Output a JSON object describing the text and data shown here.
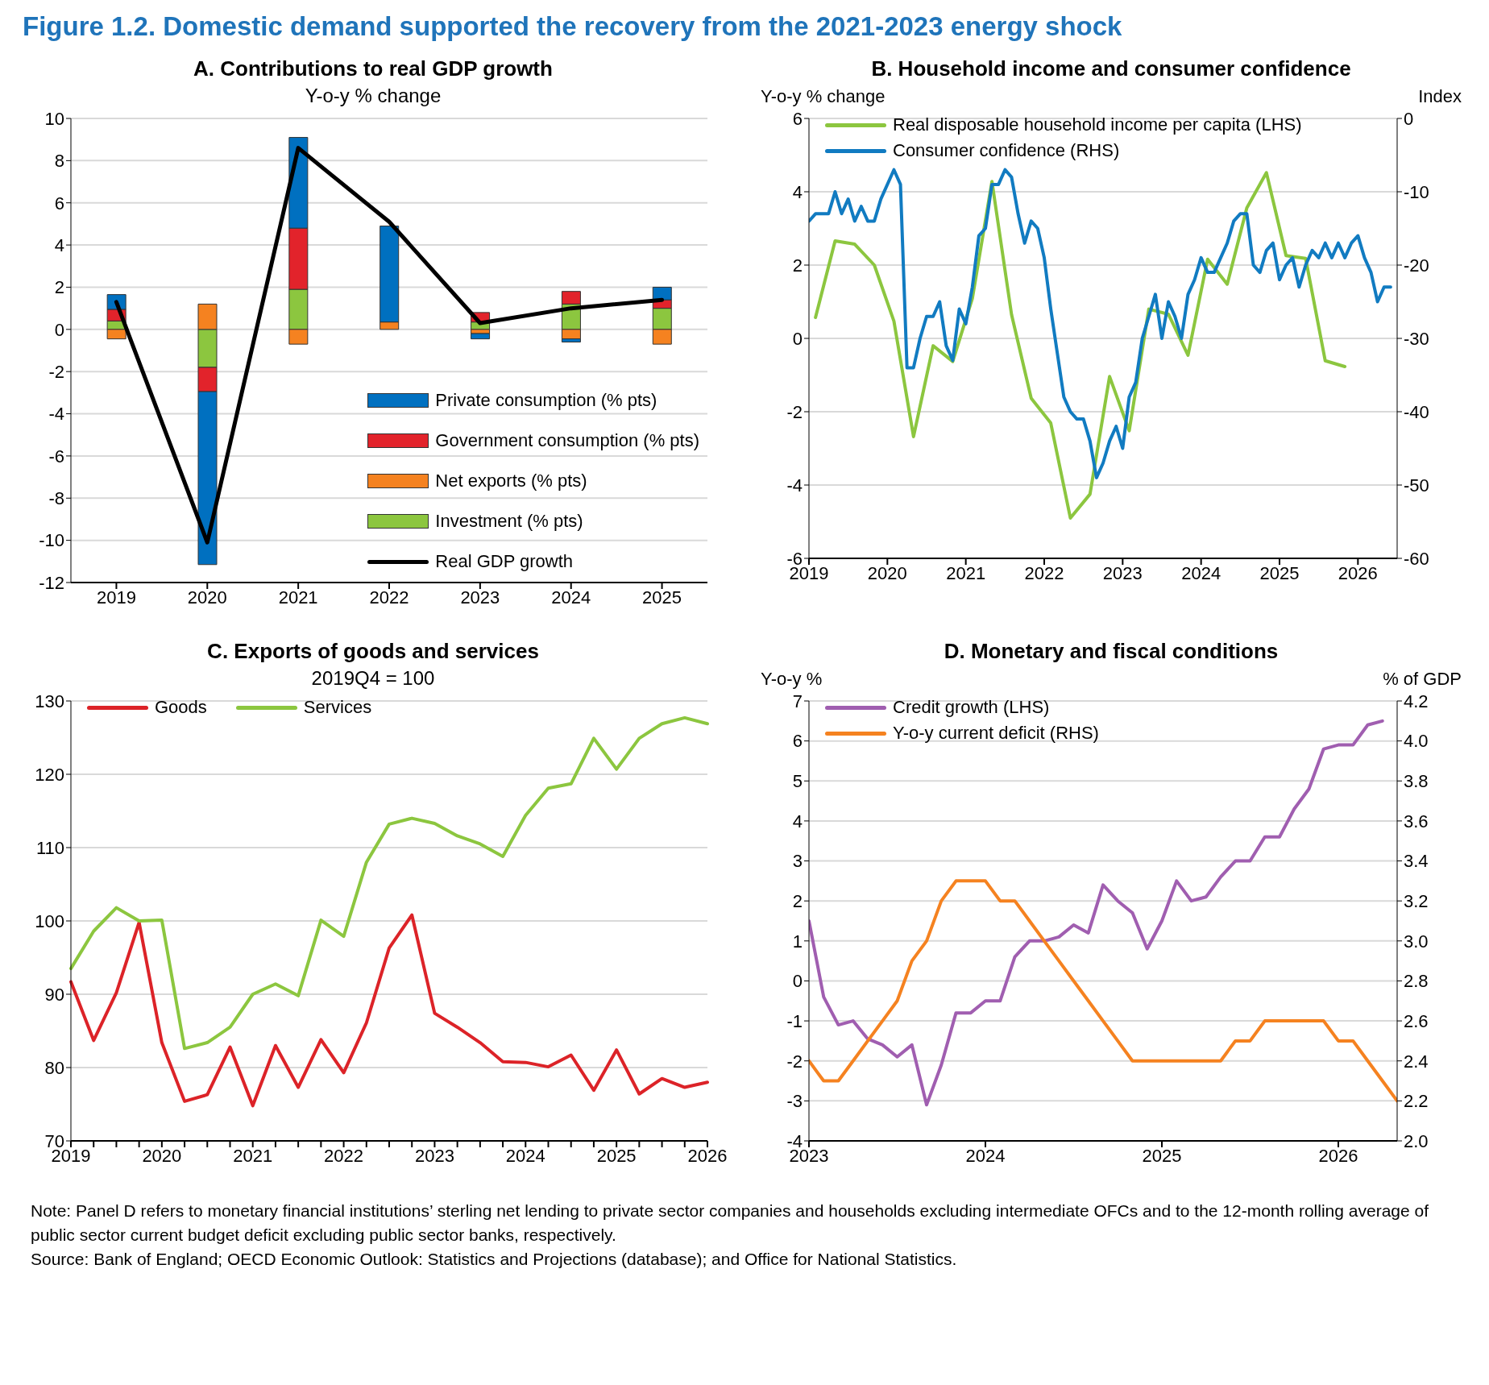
{
  "chart_data": [
    {
      "type": "other",
      "title": "Figure 1.2. Domestic demand supported the recovery from the 2021-2023 energy shock",
      "annotations": [
        "Note: Panel D refers to monetary financial institutions’ sterling net lending to private sector companies and households excluding intermediate OFCs and to the 12-month rolling average of public sector current budget deficit excluding public sector banks, respectively.",
        "Source: Bank of England; OECD Economic Outlook: Statistics and Projections (database); and Office for National Statistics."
      ]
    },
    {
      "type": "bar",
      "title": "A. Contributions to real GDP growth",
      "subtitle": "Y-o-y % change",
      "stacked": true,
      "categories": [
        "2019",
        "2020",
        "2021",
        "2022",
        "2023",
        "2024",
        "2025"
      ],
      "ylim": [
        -12,
        10
      ],
      "yticks": [
        -12,
        -10,
        -8,
        -6,
        -4,
        -2,
        0,
        2,
        4,
        6,
        8,
        10
      ],
      "grid": "y",
      "legend": "bottom right",
      "series": [
        {
          "name": "Investment (% pts)",
          "color": "#8cc63f",
          "values": [
            0.4,
            -1.8,
            1.9,
            0,
            0.35,
            1.2,
            1.0
          ]
        },
        {
          "name": "Net exports (% pts)",
          "color": "#f58220",
          "values": [
            -0.45,
            1.2,
            -0.7,
            0.35,
            -0.2,
            -0.45,
            -0.7
          ]
        },
        {
          "name": "Government consumption (% pts)",
          "color": "#e2232b",
          "values": [
            0.55,
            -1.15,
            2.9,
            0,
            0.45,
            0.6,
            0.4
          ]
        },
        {
          "name": "Private consumption (% pts)",
          "color": "#0070c0",
          "values": [
            0.7,
            -8.2,
            4.3,
            4.55,
            -0.25,
            -0.15,
            0.6
          ]
        },
        {
          "name": "Real GDP growth",
          "type": "line",
          "color": "#000000",
          "values": [
            1.3,
            -10.1,
            8.6,
            5.1,
            0.3,
            1.0,
            1.4
          ]
        }
      ]
    },
    {
      "type": "line",
      "title": "B. Household income and consumer confidence",
      "ylabel": "Y-o-y % change",
      "y2label": "Index",
      "xlim": [
        "2019-01",
        "2026-07"
      ],
      "xticks": [
        "2019",
        "2020",
        "2021",
        "2022",
        "2023",
        "2024",
        "2025",
        "2026"
      ],
      "ylim": [
        -6,
        6
      ],
      "yticks": [
        -6,
        -4,
        -2,
        0,
        2,
        4,
        6
      ],
      "y2lim": [
        -60,
        0
      ],
      "y2ticks": [
        -60,
        -50,
        -40,
        -30,
        -20,
        -10,
        0
      ],
      "grid": "y",
      "legend": "top left",
      "series": [
        {
          "name": "Real disposable household income per capita (LHS)",
          "color": "#8cc63f",
          "x": [
            "2019-02",
            "2019-05",
            "2019-08",
            "2019-11",
            "2020-02",
            "2020-05",
            "2020-08",
            "2020-11",
            "2021-02",
            "2021-05",
            "2021-08",
            "2021-11",
            "2022-02",
            "2022-05",
            "2022-08",
            "2022-11",
            "2023-02",
            "2023-05",
            "2023-08",
            "2023-11",
            "2024-02",
            "2024-05",
            "2024-08",
            "2024-11",
            "2025-02",
            "2025-05",
            "2025-08",
            "2025-11"
          ],
          "values": [
            0.57,
            2.66,
            2.57,
            2.0,
            0.47,
            -2.68,
            -0.2,
            -0.63,
            1.09,
            4.28,
            0.65,
            -1.63,
            -2.31,
            -4.9,
            -4.25,
            -1.04,
            -2.52,
            0.8,
            0.66,
            -0.46,
            2.16,
            1.48,
            3.56,
            4.52,
            2.26,
            2.18,
            -0.61,
            -0.77
          ]
        },
        {
          "name": "Consumer confidence (RHS)",
          "color": "#117bc1",
          "axis": "y2",
          "x": [
            "2019-01",
            "2019-02",
            "2019-04",
            "2019-05",
            "2019-06",
            "2019-07",
            "2019-08",
            "2019-09",
            "2019-10",
            "2019-11",
            "2019-12",
            "2020-02",
            "2020-03",
            "2020-04",
            "2020-05",
            "2020-06",
            "2020-07",
            "2020-08",
            "2020-09",
            "2020-10",
            "2020-11",
            "2020-12",
            "2021-01",
            "2021-02",
            "2021-03",
            "2021-04",
            "2021-05",
            "2021-06",
            "2021-07",
            "2021-08",
            "2021-09",
            "2021-10",
            "2021-11",
            "2021-12",
            "2022-01",
            "2022-02",
            "2022-03",
            "2022-04",
            "2022-05",
            "2022-06",
            "2022-07",
            "2022-08",
            "2022-09",
            "2022-10",
            "2022-11",
            "2022-12",
            "2023-01",
            "2023-02",
            "2023-03",
            "2023-04",
            "2023-05",
            "2023-06",
            "2023-07",
            "2023-08",
            "2023-09",
            "2023-10",
            "2023-11",
            "2023-12",
            "2024-01",
            "2024-02",
            "2024-03",
            "2024-04",
            "2024-05",
            "2024-06",
            "2024-07",
            "2024-08",
            "2024-09",
            "2024-10",
            "2024-11",
            "2024-12",
            "2025-01",
            "2025-02",
            "2025-03",
            "2025-04",
            "2025-05",
            "2025-06",
            "2025-07",
            "2025-08",
            "2025-09",
            "2025-10",
            "2025-11",
            "2025-12",
            "2026-01",
            "2026-02",
            "2026-03",
            "2026-04",
            "2026-05",
            "2026-06"
          ],
          "values": [
            -14,
            -13,
            -13,
            -10,
            -13,
            -11,
            -14,
            -12,
            -14,
            -14,
            -11,
            -7,
            -9,
            -34,
            -34,
            -30,
            -27,
            -27,
            -25,
            -31,
            -33,
            -26,
            -28,
            -23,
            -16,
            -15,
            -9,
            -9,
            -7,
            -8,
            -13,
            -17,
            -14,
            -15,
            -19,
            -26,
            -32,
            -38,
            -40,
            -41,
            -41,
            -44,
            -49,
            -47,
            -44,
            -42,
            -45,
            -38,
            -36,
            -30,
            -27,
            -24,
            -30,
            -25,
            -27,
            -30,
            -24,
            -22,
            -19,
            -21,
            -21,
            -19,
            -17,
            -14,
            -13,
            -13,
            -20,
            -21,
            -18,
            -17,
            -22,
            -20,
            -19,
            -23,
            -20,
            -18,
            -19,
            -17,
            -19,
            -17,
            -19,
            -17,
            -16,
            -19,
            -21,
            -25,
            -23,
            -23
          ]
        }
      ]
    },
    {
      "type": "line",
      "title": "C. Exports of goods and services",
      "subtitle": "2019Q4 = 100",
      "categories": [
        "2019",
        null,
        null,
        null,
        "2020",
        null,
        null,
        null,
        "2021",
        null,
        null,
        null,
        "2022",
        null,
        null,
        null,
        "2023",
        null,
        null,
        null,
        "2024",
        null,
        null,
        null,
        "2025",
        null,
        null,
        null,
        "2026"
      ],
      "ylim": [
        70,
        130
      ],
      "yticks": [
        70,
        80,
        90,
        100,
        110,
        120,
        130
      ],
      "grid": "y",
      "legend": "top left",
      "series": [
        {
          "name": "Goods",
          "color": "#dc2328",
          "values": [
            91.7,
            83.7,
            90.2,
            99.8,
            83.4,
            75.4,
            76.3,
            82.8,
            74.8,
            83.0,
            77.3,
            83.8,
            79.3,
            86.1,
            96.3,
            100.8,
            87.4,
            85.5,
            83.4,
            80.8,
            80.7,
            80.1,
            81.7,
            76.9,
            82.4,
            76.4,
            78.5,
            77.3,
            78.0
          ]
        },
        {
          "name": "Services",
          "color": "#8cc63f",
          "values": [
            93.5,
            98.6,
            101.8,
            100.0,
            100.1,
            82.6,
            83.4,
            85.5,
            90.0,
            91.4,
            89.8,
            100.1,
            97.9,
            108.0,
            113.2,
            114.0,
            113.3,
            111.6,
            110.5,
            108.8,
            114.4,
            118.1,
            118.7,
            124.9,
            120.7,
            124.9,
            126.9,
            127.7,
            126.9
          ]
        }
      ]
    },
    {
      "type": "line",
      "title": "D. Monetary and fiscal conditions",
      "ylabel": "Y-o-y %",
      "y2label": "% of GDP",
      "xlim": [
        "2023-01",
        "2026-05"
      ],
      "xticks": [
        "2023",
        "2024",
        "2025",
        "2026"
      ],
      "ylim": [
        -4,
        7
      ],
      "yticks": [
        -4,
        -3,
        -2,
        -1,
        0,
        1,
        2,
        3,
        4,
        5,
        6,
        7
      ],
      "y2lim": [
        2.0,
        4.2
      ],
      "y2ticks": [
        {
          "value": 2.0,
          "label": "2.0"
        },
        2.2,
        2.4,
        2.6,
        2.8,
        {
          "value": 3.0,
          "label": "3.0"
        },
        3.2,
        3.4,
        3.6,
        3.8,
        {
          "value": 4.0,
          "label": "4.0"
        },
        4.2
      ],
      "grid": "y",
      "legend": "top left",
      "x": [
        "2023-01",
        "2023-02",
        "2023-03",
        "2023-04",
        "2023-05",
        "2023-06",
        "2023-07",
        "2023-08",
        "2023-09",
        "2023-10",
        "2023-11",
        "2023-12",
        "2024-01",
        "2024-02",
        "2024-03",
        "2024-04",
        "2024-05",
        "2024-06",
        "2024-07",
        "2024-08",
        "2024-09",
        "2024-10",
        "2024-11",
        "2024-12",
        "2025-01",
        "2025-02",
        "2025-03",
        "2025-04",
        "2025-05",
        "2025-06",
        "2025-07",
        "2025-08",
        "2025-09",
        "2025-10",
        "2025-11",
        "2025-12",
        "2026-01",
        "2026-02",
        "2026-03",
        "2026-04",
        "2026-05"
      ],
      "series": [
        {
          "name": "Credit growth (LHS)",
          "color": "#a05eb0",
          "values": [
            1.5,
            -0.4,
            -1.1,
            -1.0,
            -1.45,
            -1.6,
            -1.9,
            -1.6,
            -3.1,
            -2.1,
            -0.8,
            -0.8,
            -0.5,
            -0.5,
            0.6,
            1.0,
            1.0,
            1.1,
            1.4,
            1.2,
            2.4,
            2.0,
            1.7,
            0.8,
            1.5,
            2.5,
            2.0,
            2.1,
            2.6,
            3.0,
            3.0,
            3.6,
            3.6,
            4.3,
            4.8,
            5.8,
            5.9,
            5.9,
            6.4,
            6.5,
            null
          ]
        },
        {
          "name": "Y-o-y current deficit (RHS)",
          "color": "#f58220",
          "axis": "y2",
          "values": [
            2.4,
            2.3,
            2.3,
            2.4,
            2.5,
            2.6,
            2.7,
            2.9,
            3.0,
            3.2,
            3.3,
            3.3,
            3.3,
            3.2,
            3.2,
            3.1,
            3.0,
            2.9,
            2.8,
            2.7,
            2.6,
            2.5,
            2.4,
            2.4,
            2.4,
            2.4,
            2.4,
            2.4,
            2.4,
            2.5,
            2.5,
            2.6,
            2.6,
            2.6,
            2.6,
            2.6,
            2.5,
            2.5,
            2.4,
            2.3,
            2.2
          ]
        }
      ]
    }
  ]
}
